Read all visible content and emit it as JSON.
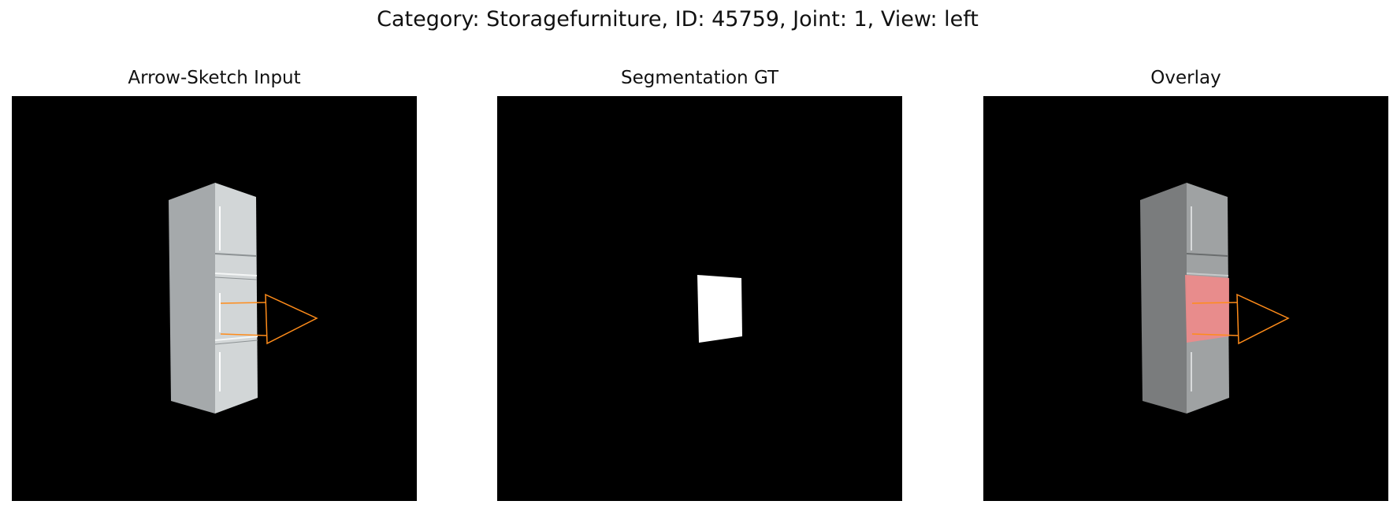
{
  "figure": {
    "title": "Category: Storagefurniture, ID: 45759, Joint: 1, View: left"
  },
  "panels": [
    {
      "title": "Arrow-Sketch Input",
      "content": "cabinet render with orange arrow sketch"
    },
    {
      "title": "Segmentation GT",
      "content": "white segmentation mask of movable drawer"
    },
    {
      "title": "Overlay",
      "content": "cabinet render with red mask overlay and orange arrow"
    }
  ],
  "colors": {
    "background": "#000000",
    "arrow": "#ff8c1a",
    "mask": "#ffffff",
    "overlay": "#f08a8a"
  }
}
